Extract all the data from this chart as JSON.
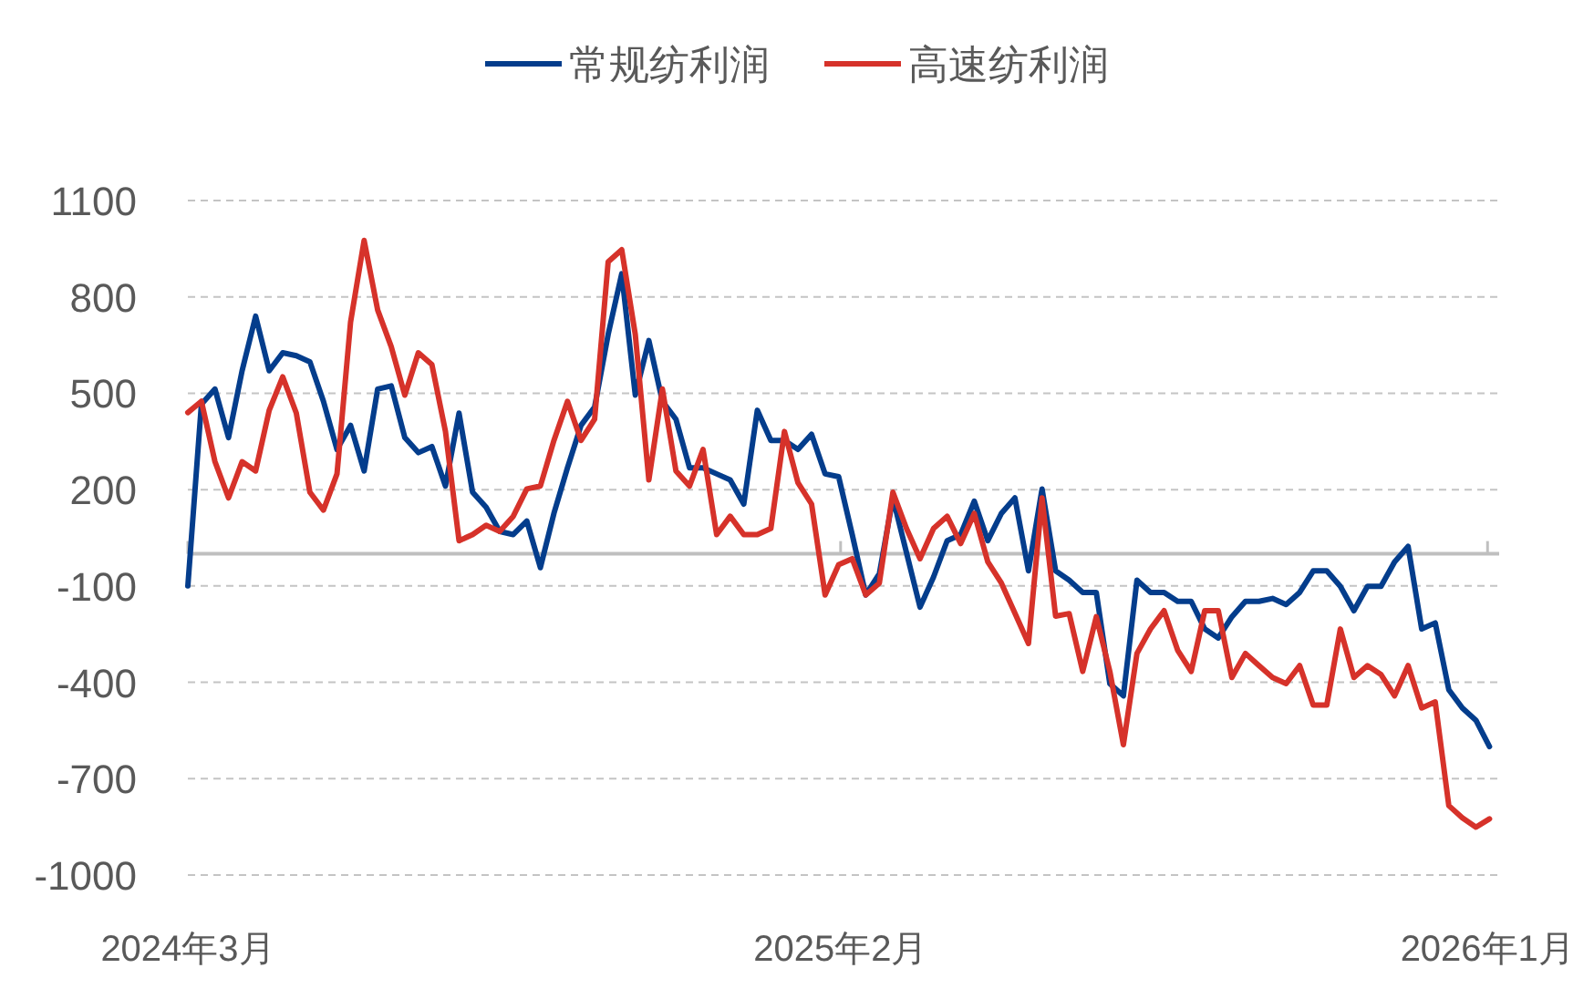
{
  "chart_data": {
    "type": "line",
    "legend": "top",
    "grid": "y",
    "xlim": [
      "2024-03-01",
      "2026-01-07"
    ],
    "xticks": [
      {
        "value": "2024-03-01",
        "label": "2024年3月"
      },
      {
        "value": "2025-02-01",
        "label": "2025年2月"
      },
      {
        "value": "2026-01-01",
        "label": "2026年1月"
      }
    ],
    "ylim": [
      -1000,
      1100
    ],
    "yticks": [
      1100,
      800,
      500,
      200,
      -100,
      -400,
      -700,
      -1000
    ],
    "x": [
      "2024-03-01",
      "2024-03-08",
      "2024-03-15",
      "2024-03-22",
      "2024-03-29",
      "2024-04-05",
      "2024-04-12",
      "2024-04-19",
      "2024-04-26",
      "2024-05-03",
      "2024-05-10",
      "2024-05-17",
      "2024-05-24",
      "2024-05-31",
      "2024-06-07",
      "2024-06-14",
      "2024-06-21",
      "2024-06-28",
      "2024-07-05",
      "2024-07-12",
      "2024-07-19",
      "2024-07-26",
      "2024-08-02",
      "2024-08-09",
      "2024-08-16",
      "2024-08-23",
      "2024-08-30",
      "2024-09-06",
      "2024-09-13",
      "2024-09-20",
      "2024-09-27",
      "2024-10-04",
      "2024-10-11",
      "2024-10-18",
      "2024-10-25",
      "2024-11-01",
      "2024-11-08",
      "2024-11-15",
      "2024-11-22",
      "2024-11-29",
      "2024-12-06",
      "2024-12-13",
      "2024-12-20",
      "2024-12-27",
      "2025-01-03",
      "2025-01-10",
      "2025-01-17",
      "2025-01-24",
      "2025-01-31",
      "2025-02-07",
      "2025-02-14",
      "2025-02-21",
      "2025-02-28",
      "2025-03-07",
      "2025-03-14",
      "2025-03-21",
      "2025-03-28",
      "2025-04-04",
      "2025-04-11",
      "2025-04-18",
      "2025-04-25",
      "2025-05-02",
      "2025-05-09",
      "2025-05-16",
      "2025-05-23",
      "2025-05-30",
      "2025-06-06",
      "2025-06-13",
      "2025-06-20",
      "2025-06-27",
      "2025-07-04",
      "2025-07-11",
      "2025-07-18",
      "2025-07-25",
      "2025-08-01",
      "2025-08-08",
      "2025-08-15",
      "2025-08-22",
      "2025-08-29",
      "2025-09-05",
      "2025-09-12",
      "2025-09-19",
      "2025-09-26",
      "2025-10-03",
      "2025-10-10",
      "2025-10-17",
      "2025-10-24",
      "2025-10-31",
      "2025-11-07",
      "2025-11-14",
      "2025-11-21",
      "2025-11-28",
      "2025-12-05",
      "2025-12-12",
      "2025-12-19",
      "2025-12-26",
      "2026-01-02"
    ],
    "series": [
      {
        "name": "常规纺利润",
        "color": "#043d8c",
        "values": [
          -100,
          466,
          513,
          362,
          570,
          740,
          570,
          626,
          617,
          598,
          475,
          325,
          400,
          258,
          513,
          523,
          362,
          315,
          334,
          211,
          438,
          192,
          145,
          70,
          60,
          102,
          -43,
          126,
          268,
          400,
          457,
          683,
          872,
          494,
          664,
          475,
          419,
          268,
          268,
          249,
          230,
          155,
          447,
          353,
          353,
          325,
          372,
          249,
          240,
          60,
          -128,
          -62,
          174,
          4,
          -166,
          -72,
          41,
          60,
          164,
          41,
          126,
          174,
          -53,
          202,
          -53,
          -82,
          -120,
          -120,
          -404,
          -442,
          -82,
          -120,
          -120,
          -148,
          -148,
          -234,
          -262,
          -196,
          -148,
          -148,
          -139,
          -158,
          -120,
          -53,
          -53,
          -101,
          -177,
          -101,
          -101,
          -25,
          23,
          -234,
          -215,
          -423,
          -480,
          -518,
          -600
        ]
      },
      {
        "name": "高速纺利润",
        "color": "#d6322a",
        "values": [
          440,
          475,
          287,
          174,
          287,
          258,
          447,
          551,
          438,
          192,
          136,
          249,
          721,
          976,
          759,
          645,
          494,
          626,
          589,
          381,
          41,
          60,
          89,
          70,
          117,
          202,
          211,
          353,
          475,
          353,
          419,
          909,
          947,
          683,
          230,
          513,
          258,
          211,
          325,
          60,
          117,
          60,
          60,
          79,
          381,
          221,
          155,
          -128,
          -34,
          -15,
          -128,
          -91,
          192,
          79,
          -15,
          79,
          117,
          32,
          126,
          -25,
          -91,
          -185,
          -279,
          174,
          -194,
          -186,
          -366,
          -196,
          -366,
          -594,
          -310,
          -234,
          -177,
          -300,
          -366,
          -177,
          -177,
          -385,
          -310,
          -348,
          -385,
          -404,
          -348,
          -471,
          -471,
          -234,
          -385,
          -348,
          -376,
          -442,
          -348,
          -480,
          -461,
          -784,
          -822,
          -851,
          -825
        ]
      }
    ]
  }
}
